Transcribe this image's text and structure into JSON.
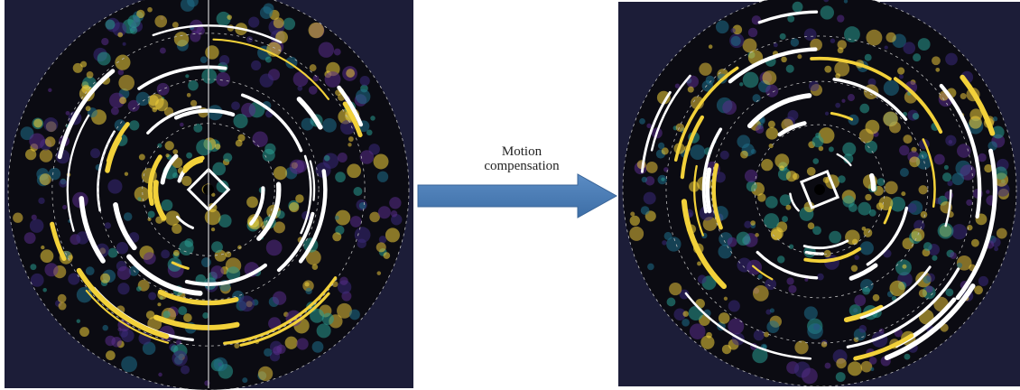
{
  "arrow_label": {
    "lines": [
      "Motion",
      "compensation"
    ]
  }
}
